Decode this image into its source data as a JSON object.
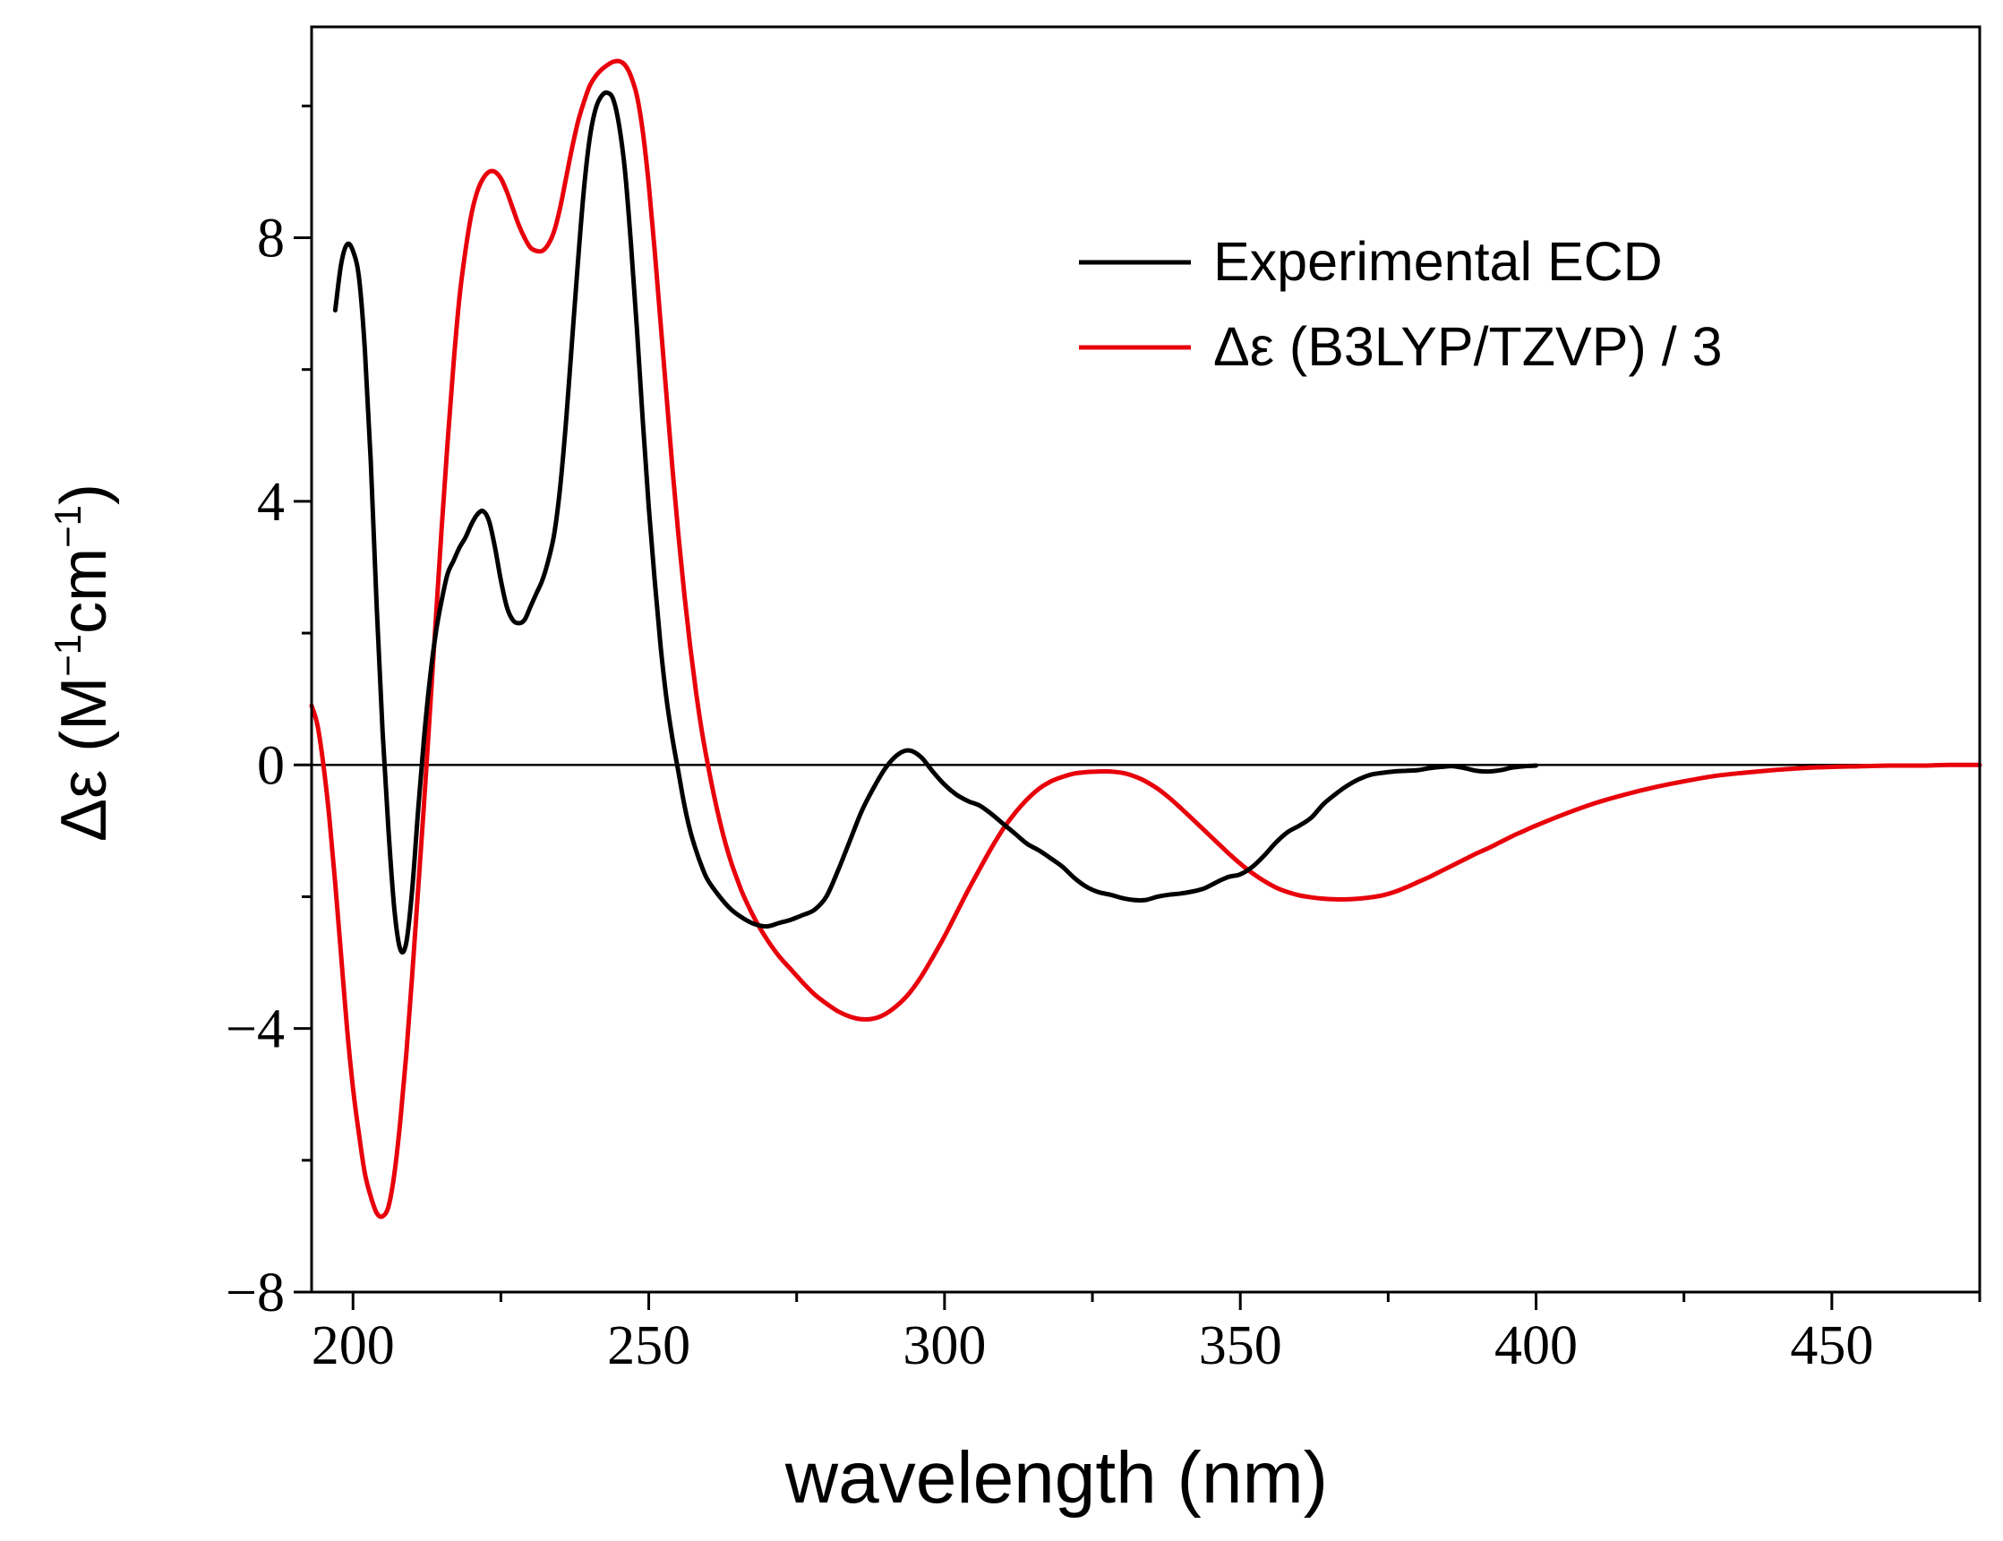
{
  "chart_data": {
    "type": "line",
    "title": "",
    "xlabel": "wavelength (nm)",
    "ylabel_parts": {
      "symbol": "Δε (M",
      "exp1": "−1",
      "mid": "cm",
      "exp2": "−1",
      "close": ")"
    },
    "xlim": [
      193,
      475
    ],
    "ylim": [
      -8,
      11.2
    ],
    "x_ticks": [
      200,
      250,
      300,
      350,
      400,
      450
    ],
    "x_tick_labels": [
      "200",
      "250",
      "300",
      "350",
      "400",
      "450"
    ],
    "x_minor_ticks": [
      225,
      275,
      325,
      375,
      425,
      475
    ],
    "y_ticks": [
      -8,
      -4,
      0,
      4,
      8
    ],
    "y_tick_labels": [
      "−8",
      "−4",
      "0",
      "4",
      "8"
    ],
    "y_minor_ticks": [
      -6,
      -2,
      2,
      6,
      10
    ],
    "zero_line": true,
    "legend": {
      "position": "top-right",
      "entries": [
        "Experimental ECD",
        "Δε (B3LYP/TZVP) / 3"
      ]
    },
    "series": [
      {
        "name": "Experimental ECD",
        "color": "#000000",
        "points": [
          [
            197,
            6.9
          ],
          [
            198,
            7.6
          ],
          [
            199,
            7.9
          ],
          [
            200,
            7.8
          ],
          [
            201,
            7.4
          ],
          [
            202,
            6.3
          ],
          [
            203,
            4.6
          ],
          [
            204,
            2.4
          ],
          [
            205,
            0.5
          ],
          [
            206,
            -1.0
          ],
          [
            207,
            -2.2
          ],
          [
            208,
            -2.8
          ],
          [
            209,
            -2.7
          ],
          [
            210,
            -1.9
          ],
          [
            211,
            -0.7
          ],
          [
            212,
            0.4
          ],
          [
            213,
            1.3
          ],
          [
            214,
            2.0
          ],
          [
            215,
            2.5
          ],
          [
            216,
            2.9
          ],
          [
            217,
            3.1
          ],
          [
            218,
            3.3
          ],
          [
            219,
            3.45
          ],
          [
            220,
            3.65
          ],
          [
            221,
            3.8
          ],
          [
            222,
            3.85
          ],
          [
            223,
            3.7
          ],
          [
            224,
            3.3
          ],
          [
            225,
            2.8
          ],
          [
            226,
            2.4
          ],
          [
            227,
            2.2
          ],
          [
            228,
            2.15
          ],
          [
            229,
            2.2
          ],
          [
            230,
            2.4
          ],
          [
            231,
            2.6
          ],
          [
            232,
            2.8
          ],
          [
            233,
            3.1
          ],
          [
            234,
            3.5
          ],
          [
            235,
            4.2
          ],
          [
            236,
            5.2
          ],
          [
            237,
            6.4
          ],
          [
            238,
            7.6
          ],
          [
            239,
            8.7
          ],
          [
            240,
            9.5
          ],
          [
            241,
            9.95
          ],
          [
            242,
            10.15
          ],
          [
            243,
            10.2
          ],
          [
            244,
            10.1
          ],
          [
            245,
            9.7
          ],
          [
            246,
            9.0
          ],
          [
            247,
            7.9
          ],
          [
            248,
            6.6
          ],
          [
            249,
            5.2
          ],
          [
            250,
            3.9
          ],
          [
            251,
            2.8
          ],
          [
            252,
            1.8
          ],
          [
            253,
            1.0
          ],
          [
            254,
            0.4
          ],
          [
            255,
            -0.1
          ],
          [
            256,
            -0.6
          ],
          [
            257,
            -1.0
          ],
          [
            258,
            -1.3
          ],
          [
            259,
            -1.55
          ],
          [
            260,
            -1.75
          ],
          [
            262,
            -2.0
          ],
          [
            264,
            -2.2
          ],
          [
            266,
            -2.33
          ],
          [
            268,
            -2.42
          ],
          [
            270,
            -2.45
          ],
          [
            272,
            -2.4
          ],
          [
            274,
            -2.35
          ],
          [
            276,
            -2.28
          ],
          [
            278,
            -2.2
          ],
          [
            280,
            -2.0
          ],
          [
            282,
            -1.6
          ],
          [
            284,
            -1.15
          ],
          [
            286,
            -0.7
          ],
          [
            288,
            -0.35
          ],
          [
            290,
            -0.05
          ],
          [
            292,
            0.15
          ],
          [
            294,
            0.22
          ],
          [
            296,
            0.12
          ],
          [
            298,
            -0.1
          ],
          [
            300,
            -0.3
          ],
          [
            302,
            -0.45
          ],
          [
            304,
            -0.55
          ],
          [
            306,
            -0.62
          ],
          [
            308,
            -0.75
          ],
          [
            310,
            -0.9
          ],
          [
            312,
            -1.05
          ],
          [
            314,
            -1.2
          ],
          [
            316,
            -1.3
          ],
          [
            318,
            -1.42
          ],
          [
            320,
            -1.55
          ],
          [
            322,
            -1.72
          ],
          [
            324,
            -1.85
          ],
          [
            326,
            -1.93
          ],
          [
            328,
            -1.97
          ],
          [
            330,
            -2.02
          ],
          [
            332,
            -2.05
          ],
          [
            334,
            -2.05
          ],
          [
            336,
            -2.0
          ],
          [
            338,
            -1.97
          ],
          [
            340,
            -1.95
          ],
          [
            342,
            -1.92
          ],
          [
            344,
            -1.87
          ],
          [
            346,
            -1.78
          ],
          [
            348,
            -1.7
          ],
          [
            350,
            -1.66
          ],
          [
            352,
            -1.55
          ],
          [
            354,
            -1.38
          ],
          [
            356,
            -1.18
          ],
          [
            358,
            -1.02
          ],
          [
            360,
            -0.92
          ],
          [
            362,
            -0.8
          ],
          [
            364,
            -0.6
          ],
          [
            366,
            -0.45
          ],
          [
            368,
            -0.32
          ],
          [
            370,
            -0.22
          ],
          [
            372,
            -0.15
          ],
          [
            374,
            -0.12
          ],
          [
            376,
            -0.1
          ],
          [
            378,
            -0.09
          ],
          [
            380,
            -0.08
          ],
          [
            382,
            -0.05
          ],
          [
            384,
            -0.03
          ],
          [
            386,
            -0.02
          ],
          [
            388,
            -0.05
          ],
          [
            390,
            -0.09
          ],
          [
            392,
            -0.1
          ],
          [
            394,
            -0.08
          ],
          [
            396,
            -0.04
          ],
          [
            398,
            -0.02
          ],
          [
            400,
            -0.01
          ]
        ]
      },
      {
        "name": "Δε (B3LYP/TZVP) / 3",
        "color": "#e8000b",
        "points": [
          [
            193,
            0.9
          ],
          [
            194,
            0.6
          ],
          [
            195,
            0.0
          ],
          [
            196,
            -0.8
          ],
          [
            197,
            -1.8
          ],
          [
            198,
            -2.9
          ],
          [
            199,
            -4.0
          ],
          [
            200,
            -4.9
          ],
          [
            201,
            -5.6
          ],
          [
            202,
            -6.2
          ],
          [
            203,
            -6.55
          ],
          [
            204,
            -6.8
          ],
          [
            205,
            -6.85
          ],
          [
            206,
            -6.7
          ],
          [
            207,
            -6.2
          ],
          [
            208,
            -5.4
          ],
          [
            209,
            -4.4
          ],
          [
            210,
            -3.2
          ],
          [
            211,
            -1.9
          ],
          [
            212,
            -0.6
          ],
          [
            213,
            0.8
          ],
          [
            214,
            2.2
          ],
          [
            215,
            3.6
          ],
          [
            216,
            4.9
          ],
          [
            217,
            6.1
          ],
          [
            218,
            7.1
          ],
          [
            219,
            7.8
          ],
          [
            220,
            8.35
          ],
          [
            221,
            8.7
          ],
          [
            222,
            8.9
          ],
          [
            223,
            9.0
          ],
          [
            224,
            9.0
          ],
          [
            225,
            8.9
          ],
          [
            226,
            8.7
          ],
          [
            227,
            8.45
          ],
          [
            228,
            8.2
          ],
          [
            229,
            8.0
          ],
          [
            230,
            7.85
          ],
          [
            231,
            7.8
          ],
          [
            232,
            7.8
          ],
          [
            233,
            7.9
          ],
          [
            234,
            8.1
          ],
          [
            235,
            8.45
          ],
          [
            236,
            8.9
          ],
          [
            237,
            9.35
          ],
          [
            238,
            9.75
          ],
          [
            239,
            10.05
          ],
          [
            240,
            10.3
          ],
          [
            241,
            10.45
          ],
          [
            242,
            10.55
          ],
          [
            243,
            10.62
          ],
          [
            244,
            10.67
          ],
          [
            245,
            10.68
          ],
          [
            246,
            10.62
          ],
          [
            247,
            10.45
          ],
          [
            248,
            10.15
          ],
          [
            249,
            9.6
          ],
          [
            250,
            8.8
          ],
          [
            251,
            7.8
          ],
          [
            252,
            6.7
          ],
          [
            253,
            5.6
          ],
          [
            254,
            4.5
          ],
          [
            255,
            3.5
          ],
          [
            256,
            2.6
          ],
          [
            257,
            1.8
          ],
          [
            258,
            1.1
          ],
          [
            259,
            0.5
          ],
          [
            260,
            0.0
          ],
          [
            261,
            -0.45
          ],
          [
            262,
            -0.85
          ],
          [
            263,
            -1.2
          ],
          [
            264,
            -1.5
          ],
          [
            265,
            -1.75
          ],
          [
            266,
            -1.98
          ],
          [
            268,
            -2.35
          ],
          [
            270,
            -2.65
          ],
          [
            272,
            -2.9
          ],
          [
            274,
            -3.1
          ],
          [
            276,
            -3.3
          ],
          [
            278,
            -3.48
          ],
          [
            280,
            -3.62
          ],
          [
            282,
            -3.74
          ],
          [
            284,
            -3.82
          ],
          [
            286,
            -3.86
          ],
          [
            288,
            -3.85
          ],
          [
            290,
            -3.78
          ],
          [
            292,
            -3.65
          ],
          [
            294,
            -3.47
          ],
          [
            296,
            -3.22
          ],
          [
            298,
            -2.92
          ],
          [
            300,
            -2.6
          ],
          [
            302,
            -2.25
          ],
          [
            304,
            -1.9
          ],
          [
            306,
            -1.57
          ],
          [
            308,
            -1.25
          ],
          [
            310,
            -0.96
          ],
          [
            312,
            -0.72
          ],
          [
            314,
            -0.52
          ],
          [
            316,
            -0.36
          ],
          [
            318,
            -0.25
          ],
          [
            320,
            -0.18
          ],
          [
            322,
            -0.13
          ],
          [
            324,
            -0.11
          ],
          [
            326,
            -0.1
          ],
          [
            328,
            -0.1
          ],
          [
            330,
            -0.12
          ],
          [
            332,
            -0.17
          ],
          [
            334,
            -0.25
          ],
          [
            336,
            -0.36
          ],
          [
            338,
            -0.5
          ],
          [
            340,
            -0.66
          ],
          [
            342,
            -0.83
          ],
          [
            344,
            -1.0
          ],
          [
            346,
            -1.17
          ],
          [
            348,
            -1.34
          ],
          [
            350,
            -1.5
          ],
          [
            352,
            -1.64
          ],
          [
            354,
            -1.76
          ],
          [
            356,
            -1.86
          ],
          [
            358,
            -1.93
          ],
          [
            360,
            -1.98
          ],
          [
            362,
            -2.01
          ],
          [
            364,
            -2.03
          ],
          [
            366,
            -2.04
          ],
          [
            368,
            -2.04
          ],
          [
            370,
            -2.03
          ],
          [
            372,
            -2.01
          ],
          [
            374,
            -1.98
          ],
          [
            376,
            -1.93
          ],
          [
            378,
            -1.86
          ],
          [
            380,
            -1.78
          ],
          [
            382,
            -1.7
          ],
          [
            384,
            -1.61
          ],
          [
            386,
            -1.52
          ],
          [
            388,
            -1.43
          ],
          [
            390,
            -1.34
          ],
          [
            392,
            -1.26
          ],
          [
            394,
            -1.17
          ],
          [
            396,
            -1.08
          ],
          [
            398,
            -1.0
          ],
          [
            400,
            -0.92
          ],
          [
            405,
            -0.74
          ],
          [
            410,
            -0.58
          ],
          [
            415,
            -0.45
          ],
          [
            420,
            -0.34
          ],
          [
            425,
            -0.25
          ],
          [
            430,
            -0.17
          ],
          [
            435,
            -0.12
          ],
          [
            440,
            -0.08
          ],
          [
            445,
            -0.05
          ],
          [
            450,
            -0.03
          ],
          [
            455,
            -0.02
          ],
          [
            460,
            -0.01
          ],
          [
            465,
            -0.01
          ],
          [
            470,
            0.0
          ],
          [
            475,
            0.0
          ]
        ]
      }
    ]
  }
}
